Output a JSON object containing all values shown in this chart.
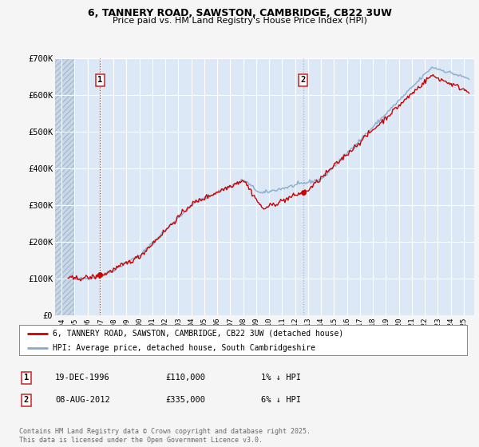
{
  "title_line1": "6, TANNERY ROAD, SAWSTON, CAMBRIDGE, CB22 3UW",
  "title_line2": "Price paid vs. HM Land Registry's House Price Index (HPI)",
  "xlim": [
    1993.5,
    2025.8
  ],
  "ylim": [
    0,
    700000
  ],
  "yticks": [
    0,
    100000,
    200000,
    300000,
    400000,
    500000,
    600000,
    700000
  ],
  "ytick_labels": [
    "£0",
    "£100K",
    "£200K",
    "£300K",
    "£400K",
    "£500K",
    "£600K",
    "£700K"
  ],
  "xticks": [
    1994,
    1995,
    1996,
    1997,
    1998,
    1999,
    2000,
    2001,
    2002,
    2003,
    2004,
    2005,
    2006,
    2007,
    2008,
    2009,
    2010,
    2011,
    2012,
    2013,
    2014,
    2015,
    2016,
    2017,
    2018,
    2019,
    2020,
    2021,
    2022,
    2023,
    2024,
    2025
  ],
  "property_color": "#cc0000",
  "hpi_color": "#88aacc",
  "background_color": "#f5f5f5",
  "plot_bg_color": "#dce8f5",
  "hatch_bg_color": "#c8d8e8",
  "grid_color": "#ffffff",
  "sale1_x": 1996.97,
  "sale1_y": 110000,
  "sale1_label": "1",
  "sale2_x": 2012.61,
  "sale2_y": 335000,
  "sale2_label": "2",
  "hpi_start_x": 1995.0,
  "legend_line1": "6, TANNERY ROAD, SAWSTON, CAMBRIDGE, CB22 3UW (detached house)",
  "legend_line2": "HPI: Average price, detached house, South Cambridgeshire",
  "annotation1_date": "19-DEC-1996",
  "annotation1_price": "£110,000",
  "annotation1_hpi": "1% ↓ HPI",
  "annotation2_date": "08-AUG-2012",
  "annotation2_price": "£335,000",
  "annotation2_hpi": "6% ↓ HPI",
  "footer": "Contains HM Land Registry data © Crown copyright and database right 2025.\nThis data is licensed under the Open Government Licence v3.0."
}
